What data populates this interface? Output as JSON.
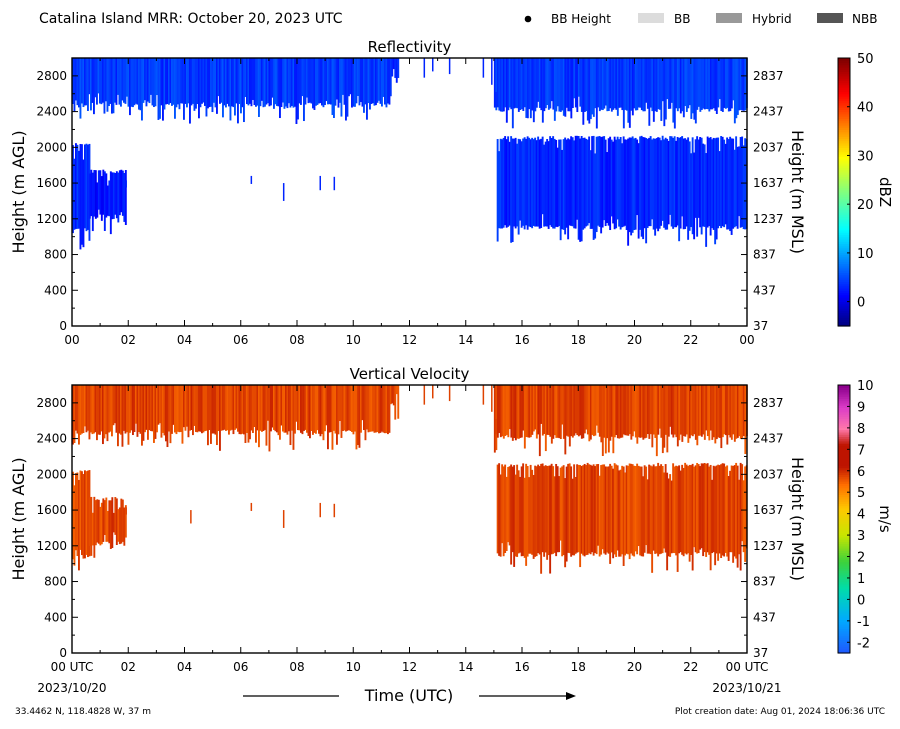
{
  "header": {
    "title": "Catalina Island MRR:  October 20, 2023 UTC",
    "legend": [
      {
        "label": "BB Height",
        "marker": "dot",
        "color": "#000000"
      },
      {
        "label": "BB",
        "marker": "box",
        "color": "#dcdcdc"
      },
      {
        "label": "Hybrid",
        "marker": "box",
        "color": "#999999"
      },
      {
        "label": "NBB",
        "marker": "box",
        "color": "#555555"
      }
    ]
  },
  "footer": {
    "location": "33.4462 N, 118.4828 W, 37 m",
    "created": "Plot creation date: Aug 01, 2024 18:06:36 UTC",
    "start_date": "2023/10/20",
    "end_date": "2023/10/21",
    "xlabel": "Time (UTC)"
  },
  "chart_data": [
    {
      "type": "heatmap",
      "title": "Reflectivity",
      "ylabel": "Height (m AGL)",
      "ylabel_right": "Height (m MSL)",
      "x_ticks": [
        "00",
        "02",
        "04",
        "06",
        "08",
        "10",
        "12",
        "14",
        "16",
        "18",
        "20",
        "22",
        "00"
      ],
      "y_ticks": [
        0,
        400,
        800,
        1200,
        1600,
        2000,
        2400,
        2800
      ],
      "y_ticks_right": [
        37,
        437,
        837,
        1237,
        1637,
        2037,
        2437,
        2837
      ],
      "xlim_hours": [
        0,
        24
      ],
      "ylim": [
        0,
        3000
      ],
      "color": "#1a3cff",
      "colorbar": {
        "label": "dBZ",
        "min": -5,
        "max": 50,
        "ticks": [
          0,
          10,
          20,
          30,
          40,
          50
        ],
        "scheme": "jet"
      },
      "regions": [
        {
          "t0": 0.0,
          "t1": 0.6,
          "h0": 1100,
          "h1": 2050,
          "value": 3
        },
        {
          "t0": 0.6,
          "t1": 1.9,
          "h0": 1250,
          "h1": 1750,
          "value": 2
        },
        {
          "t0": 0.0,
          "t1": 11.3,
          "h0": 2500,
          "h1": 3000,
          "value": 4
        },
        {
          "t0": 11.3,
          "t1": 11.6,
          "h0": 2800,
          "h1": 3000,
          "value": 3
        },
        {
          "t0": 15.0,
          "t1": 24.0,
          "h0": 2450,
          "h1": 3000,
          "value": 4
        },
        {
          "t0": 15.1,
          "t1": 24.0,
          "h0": 1130,
          "h1": 2130,
          "value": 3
        }
      ],
      "spikes": [
        {
          "t": 6.35,
          "h0": 1590,
          "h1": 1680
        },
        {
          "t": 7.5,
          "h0": 1400,
          "h1": 1600
        },
        {
          "t": 8.8,
          "h0": 1520,
          "h1": 1680
        },
        {
          "t": 9.3,
          "h0": 1520,
          "h1": 1670
        },
        {
          "t": 12.5,
          "h0": 2780,
          "h1": 3000
        },
        {
          "t": 12.8,
          "h0": 2850,
          "h1": 3000
        },
        {
          "t": 13.4,
          "h0": 2820,
          "h1": 3000
        },
        {
          "t": 14.6,
          "h0": 2780,
          "h1": 3000
        },
        {
          "t": 14.9,
          "h0": 2700,
          "h1": 3000
        },
        {
          "t": 15.05,
          "h0": 2450,
          "h1": 2620
        },
        {
          "t": 1.9,
          "h0": 1550,
          "h1": 1630
        }
      ]
    },
    {
      "type": "heatmap",
      "title": "Vertical Velocity",
      "ylabel": "Height (m AGL)",
      "ylabel_right": "Height (m MSL)",
      "x_ticks": [
        "00 UTC",
        "02",
        "04",
        "06",
        "08",
        "10",
        "12",
        "14",
        "16",
        "18",
        "20",
        "22",
        "00 UTC"
      ],
      "y_ticks": [
        0,
        400,
        800,
        1200,
        1600,
        2000,
        2400,
        2800
      ],
      "y_ticks_right": [
        37,
        437,
        837,
        1237,
        1637,
        2037,
        2437,
        2837
      ],
      "xlim_hours": [
        0,
        24
      ],
      "ylim": [
        0,
        3000
      ],
      "color": "#b31200",
      "colorbar": {
        "label": "m/s",
        "min": -2.5,
        "max": 10,
        "ticks": [
          -2,
          -1,
          0,
          1,
          2,
          3,
          4,
          5,
          6,
          7,
          8,
          9,
          10
        ],
        "scheme": "carbone"
      },
      "regions": [
        {
          "t0": 0.0,
          "t1": 0.6,
          "h0": 1100,
          "h1": 2050,
          "value": 5.8
        },
        {
          "t0": 0.6,
          "t1": 1.9,
          "h0": 1250,
          "h1": 1750,
          "value": 5.8
        },
        {
          "t0": 0.0,
          "t1": 11.3,
          "h0": 2500,
          "h1": 3000,
          "value": 5.8
        },
        {
          "t0": 11.3,
          "t1": 11.6,
          "h0": 2800,
          "h1": 3000,
          "value": 5.8
        },
        {
          "t0": 15.0,
          "t1": 24.0,
          "h0": 2450,
          "h1": 3000,
          "value": 5.8
        },
        {
          "t0": 15.1,
          "t1": 24.0,
          "h0": 1130,
          "h1": 2130,
          "value": 5.8
        }
      ],
      "spikes": [
        {
          "t": 4.2,
          "h0": 1450,
          "h1": 1600
        },
        {
          "t": 6.35,
          "h0": 1590,
          "h1": 1680
        },
        {
          "t": 7.5,
          "h0": 1400,
          "h1": 1600
        },
        {
          "t": 8.8,
          "h0": 1520,
          "h1": 1680
        },
        {
          "t": 9.3,
          "h0": 1520,
          "h1": 1670
        },
        {
          "t": 12.5,
          "h0": 2780,
          "h1": 3000
        },
        {
          "t": 12.8,
          "h0": 2850,
          "h1": 3000
        },
        {
          "t": 13.4,
          "h0": 2820,
          "h1": 3000
        },
        {
          "t": 14.6,
          "h0": 2780,
          "h1": 3000
        },
        {
          "t": 14.9,
          "h0": 2700,
          "h1": 3000
        },
        {
          "t": 15.05,
          "h0": 2450,
          "h1": 2620
        },
        {
          "t": 1.9,
          "h0": 1550,
          "h1": 1630
        }
      ]
    }
  ]
}
